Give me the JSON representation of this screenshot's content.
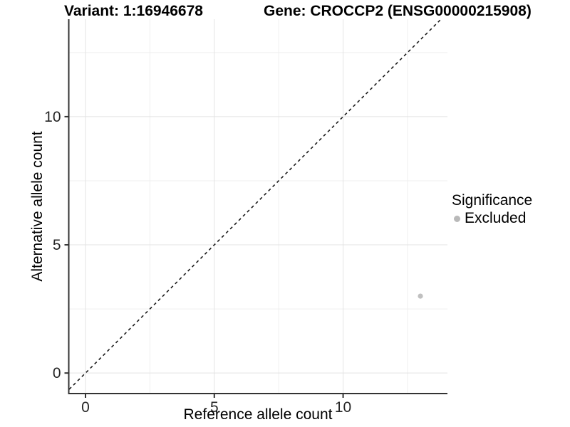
{
  "header": {
    "variant_title": "Variant: 1:16946678",
    "gene_title": "Gene: CROCCP2 (ENSG00000215908)"
  },
  "chart_data": {
    "type": "scatter",
    "title_left": "Variant: 1:16946678",
    "title_right": "Gene: CROCCP2 (ENSG00000215908)",
    "xlabel": "Reference allele count",
    "ylabel": "Alternative allele count",
    "xlim": [
      -0.65,
      14.05
    ],
    "ylim": [
      -0.8,
      13.8
    ],
    "x_ticks": [
      0,
      5,
      10
    ],
    "y_ticks": [
      0,
      5,
      10
    ],
    "x_minor_ticks": [
      2.5,
      7.5,
      12.5
    ],
    "y_minor_ticks": [
      2.5,
      7.5,
      12.5
    ],
    "grid": "major and minor gridlines, white panel background",
    "identity_line": {
      "equation": "y = x",
      "style": "dashed",
      "color": "#1a1a1a"
    },
    "series": [
      {
        "name": "Excluded",
        "color": "#c0c0c0",
        "points": [
          {
            "x": 13,
            "y": 3
          }
        ]
      }
    ],
    "legend": {
      "title": "Significance",
      "position": "right",
      "items": [
        {
          "label": "Excluded",
          "color": "#b9b9b9"
        }
      ]
    },
    "style": {
      "background": "#ffffff",
      "axis_line": "#333333",
      "grid_major": "#e3e3e3",
      "grid_minor": "#efefef",
      "tick_mark": "#333333",
      "tick_label": "#262626"
    }
  }
}
